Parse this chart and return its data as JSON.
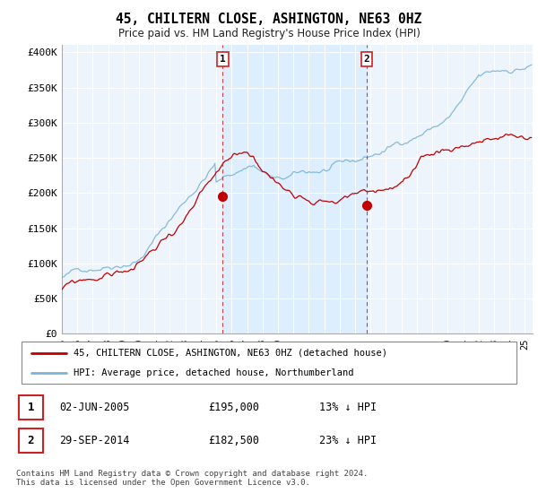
{
  "title": "45, CHILTERN CLOSE, ASHINGTON, NE63 0HZ",
  "subtitle": "Price paid vs. HM Land Registry's House Price Index (HPI)",
  "ylabel_ticks": [
    "£0",
    "£50K",
    "£100K",
    "£150K",
    "£200K",
    "£250K",
    "£300K",
    "£350K",
    "£400K"
  ],
  "ytick_values": [
    0,
    50000,
    100000,
    150000,
    200000,
    250000,
    300000,
    350000,
    400000
  ],
  "ylim": [
    0,
    410000
  ],
  "xlim_start": 1995.0,
  "xlim_end": 2025.5,
  "hpi_color": "#7ab4d8",
  "price_color": "#c00000",
  "shade_color": "#ddeeff",
  "purchase1_date": 2005.42,
  "purchase1_price": 195000,
  "purchase2_date": 2014.75,
  "purchase2_price": 182500,
  "legend_label1": "45, CHILTERN CLOSE, ASHINGTON, NE63 0HZ (detached house)",
  "legend_label2": "HPI: Average price, detached house, Northumberland",
  "table_row1": [
    "1",
    "02-JUN-2005",
    "£195,000",
    "13% ↓ HPI"
  ],
  "table_row2": [
    "2",
    "29-SEP-2014",
    "£182,500",
    "23% ↓ HPI"
  ],
  "footer": "Contains HM Land Registry data © Crown copyright and database right 2024.\nThis data is licensed under the Open Government Licence v3.0.",
  "background_color": "#eef4fb",
  "grid_color": "#ffffff",
  "annotation_box_color": "#cc2222"
}
